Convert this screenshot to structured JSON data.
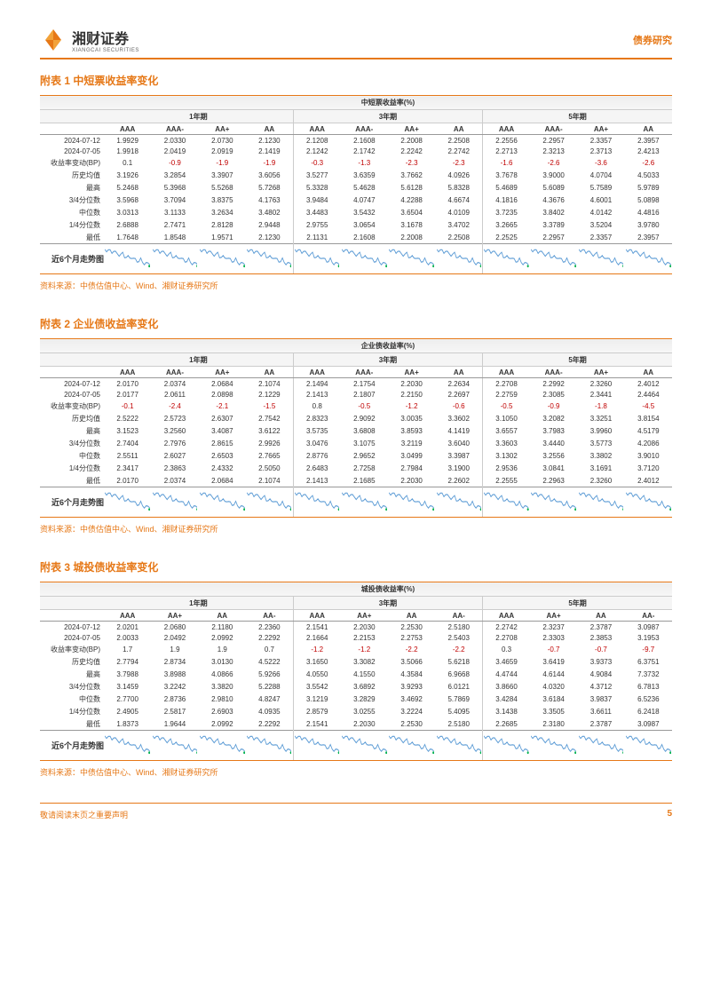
{
  "header": {
    "brand_cn": "湘财证券",
    "brand_en": "XIANGCAI SECURITIES",
    "category": "债券研究"
  },
  "source_text": "资料来源：中债估值中心、Wind、湘财证券研究所",
  "footer": {
    "disclaimer": "敬请阅读末页之重要声明",
    "page_num": "5"
  },
  "colors": {
    "brand": "#e67817",
    "neg": "#c00000",
    "grid": "#cccccc",
    "spark_stroke": "#5b9bd5",
    "spark_end": "#00b050"
  },
  "row_labels": [
    "2024-07-12",
    "2024-07-05",
    "收益率变动(BP)",
    "历史均值",
    "最高",
    "3/4分位数",
    "中位数",
    "1/4分位数",
    "最低"
  ],
  "trend_label": "近6个月走势图",
  "groups": [
    "1年期",
    "3年期",
    "5年期"
  ],
  "sub_cols_a": [
    "AAA",
    "AAA-",
    "AA+",
    "AA"
  ],
  "sub_cols_b": [
    "AAA",
    "AA+",
    "AA",
    "AA-"
  ],
  "sections": [
    {
      "title": "附表 1  中短票收益率变化",
      "table_header": "中短票收益率(%)",
      "sub_cols": "a",
      "rows": [
        [
          "1.9929",
          "2.0330",
          "2.0730",
          "2.1230",
          "2.1208",
          "2.1608",
          "2.2008",
          "2.2508",
          "2.2556",
          "2.2957",
          "2.3357",
          "2.3957"
        ],
        [
          "1.9918",
          "2.0419",
          "2.0919",
          "2.1419",
          "2.1242",
          "2.1742",
          "2.2242",
          "2.2742",
          "2.2713",
          "2.3213",
          "2.3713",
          "2.4213"
        ],
        [
          "0.1",
          "-0.9",
          "-1.9",
          "-1.9",
          "-0.3",
          "-1.3",
          "-2.3",
          "-2.3",
          "-1.6",
          "-2.6",
          "-3.6",
          "-2.6"
        ],
        [
          "3.1926",
          "3.2854",
          "3.3907",
          "3.6056",
          "3.5277",
          "3.6359",
          "3.7662",
          "4.0926",
          "3.7678",
          "3.9000",
          "4.0704",
          "4.5033"
        ],
        [
          "5.2468",
          "5.3968",
          "5.5268",
          "5.7268",
          "5.3328",
          "5.4628",
          "5.6128",
          "5.8328",
          "5.4689",
          "5.6089",
          "5.7589",
          "5.9789"
        ],
        [
          "3.5968",
          "3.7094",
          "3.8375",
          "4.1763",
          "3.9484",
          "4.0747",
          "4.2288",
          "4.6674",
          "4.1816",
          "4.3676",
          "4.6001",
          "5.0898"
        ],
        [
          "3.0313",
          "3.1133",
          "3.2634",
          "3.4802",
          "3.4483",
          "3.5432",
          "3.6504",
          "4.0109",
          "3.7235",
          "3.8402",
          "4.0142",
          "4.4816"
        ],
        [
          "2.6888",
          "2.7471",
          "2.8128",
          "2.9448",
          "2.9755",
          "3.0654",
          "3.1678",
          "3.4702",
          "3.2665",
          "3.3789",
          "3.5204",
          "3.9780"
        ],
        [
          "1.7648",
          "1.8548",
          "1.9571",
          "2.1230",
          "2.1131",
          "2.1608",
          "2.2008",
          "2.2508",
          "2.2525",
          "2.2957",
          "2.3357",
          "2.3957"
        ]
      ],
      "neg_row_idx": 2
    },
    {
      "title": "附表 2  企业债收益率变化",
      "table_header": "企业债收益率(%)",
      "sub_cols": "a",
      "rows": [
        [
          "2.0170",
          "2.0374",
          "2.0684",
          "2.1074",
          "2.1494",
          "2.1754",
          "2.2030",
          "2.2634",
          "2.2708",
          "2.2992",
          "2.3260",
          "2.4012"
        ],
        [
          "2.0177",
          "2.0611",
          "2.0898",
          "2.1229",
          "2.1413",
          "2.1807",
          "2.2150",
          "2.2697",
          "2.2759",
          "2.3085",
          "2.3441",
          "2.4464"
        ],
        [
          "-0.1",
          "-2.4",
          "-2.1",
          "-1.5",
          "0.8",
          "-0.5",
          "-1.2",
          "-0.6",
          "-0.5",
          "-0.9",
          "-1.8",
          "-4.5"
        ],
        [
          "2.5222",
          "2.5723",
          "2.6307",
          "2.7542",
          "2.8323",
          "2.9092",
          "3.0035",
          "3.3602",
          "3.1050",
          "3.2082",
          "3.3251",
          "3.8154"
        ],
        [
          "3.1523",
          "3.2560",
          "3.4087",
          "3.6122",
          "3.5735",
          "3.6808",
          "3.8593",
          "4.1419",
          "3.6557",
          "3.7983",
          "3.9960",
          "4.5179"
        ],
        [
          "2.7404",
          "2.7976",
          "2.8615",
          "2.9926",
          "3.0476",
          "3.1075",
          "3.2119",
          "3.6040",
          "3.3603",
          "3.4440",
          "3.5773",
          "4.2086"
        ],
        [
          "2.5511",
          "2.6027",
          "2.6503",
          "2.7665",
          "2.8776",
          "2.9652",
          "3.0499",
          "3.3987",
          "3.1302",
          "3.2556",
          "3.3802",
          "3.9010"
        ],
        [
          "2.3417",
          "2.3863",
          "2.4332",
          "2.5050",
          "2.6483",
          "2.7258",
          "2.7984",
          "3.1900",
          "2.9536",
          "3.0841",
          "3.1691",
          "3.7120"
        ],
        [
          "2.0170",
          "2.0374",
          "2.0684",
          "2.1074",
          "2.1413",
          "2.1685",
          "2.2030",
          "2.2602",
          "2.2555",
          "2.2963",
          "2.3260",
          "2.4012"
        ]
      ],
      "neg_row_idx": 2
    },
    {
      "title": "附表 3  城投债收益率变化",
      "table_header": "城投债收益率(%)",
      "sub_cols": "b",
      "rows": [
        [
          "2.0201",
          "2.0680",
          "2.1180",
          "2.2360",
          "2.1541",
          "2.2030",
          "2.2530",
          "2.5180",
          "2.2742",
          "2.3237",
          "2.3787",
          "3.0987"
        ],
        [
          "2.0033",
          "2.0492",
          "2.0992",
          "2.2292",
          "2.1664",
          "2.2153",
          "2.2753",
          "2.5403",
          "2.2708",
          "2.3303",
          "2.3853",
          "3.1953"
        ],
        [
          "1.7",
          "1.9",
          "1.9",
          "0.7",
          "-1.2",
          "-1.2",
          "-2.2",
          "-2.2",
          "0.3",
          "-0.7",
          "-0.7",
          "-9.7"
        ],
        [
          "2.7794",
          "2.8734",
          "3.0130",
          "4.5222",
          "3.1650",
          "3.3082",
          "3.5066",
          "5.6218",
          "3.4659",
          "3.6419",
          "3.9373",
          "6.3751"
        ],
        [
          "3.7988",
          "3.8988",
          "4.0866",
          "5.9266",
          "4.0550",
          "4.1550",
          "4.3584",
          "6.9668",
          "4.4744",
          "4.6144",
          "4.9084",
          "7.3732"
        ],
        [
          "3.1459",
          "3.2242",
          "3.3820",
          "5.2288",
          "3.5542",
          "3.6892",
          "3.9293",
          "6.0121",
          "3.8660",
          "4.0320",
          "4.3712",
          "6.7813"
        ],
        [
          "2.7700",
          "2.8736",
          "2.9810",
          "4.8247",
          "3.1219",
          "3.2829",
          "3.4692",
          "5.7869",
          "3.4284",
          "3.6184",
          "3.9837",
          "6.5236"
        ],
        [
          "2.4905",
          "2.5817",
          "2.6903",
          "4.0935",
          "2.8579",
          "3.0255",
          "3.2224",
          "5.4095",
          "3.1438",
          "3.3505",
          "3.6611",
          "6.2418"
        ],
        [
          "1.8373",
          "1.9644",
          "2.0992",
          "2.2292",
          "2.1541",
          "2.2030",
          "2.2530",
          "2.5180",
          "2.2685",
          "2.3180",
          "2.3787",
          "3.0987"
        ]
      ],
      "neg_row_idx": 2
    }
  ]
}
